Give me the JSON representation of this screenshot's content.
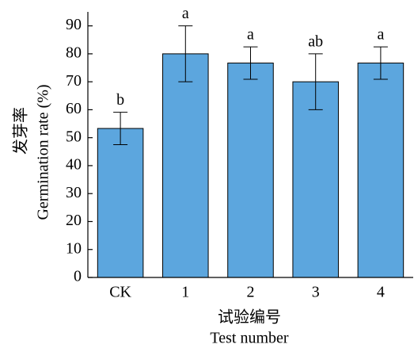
{
  "chart_data": {
    "type": "bar",
    "x_label": [
      "试验编号",
      "Test number"
    ],
    "y_label": [
      "发芽率",
      "Germination rate (%)"
    ],
    "categories": [
      "CK",
      "1",
      "2",
      "3",
      "4"
    ],
    "values": [
      53.3,
      80,
      76.7,
      70,
      76.7
    ],
    "errors": [
      5.8,
      10,
      5.8,
      10,
      5.8
    ],
    "letters": [
      "b",
      "a",
      "a",
      "ab",
      "a"
    ],
    "color": "#5ca6de",
    "ylim": [
      0,
      95
    ],
    "yticks": [
      0,
      10,
      20,
      30,
      40,
      50,
      60,
      70,
      80,
      90
    ]
  }
}
